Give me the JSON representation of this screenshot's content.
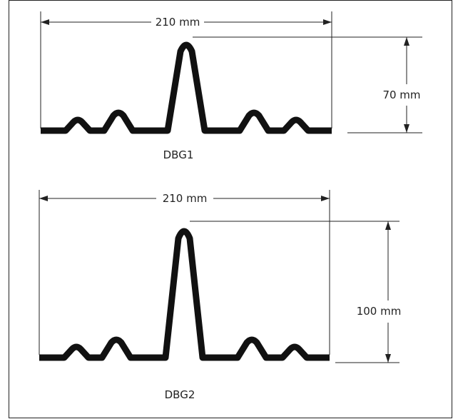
{
  "figures": [
    {
      "name": "DBG1",
      "width_label": "210 mm",
      "height_label": "70 mm"
    },
    {
      "name": "DBG2",
      "width_label": "210 mm",
      "height_label": "100 mm"
    }
  ],
  "colors": {
    "line": "#222222",
    "profile": "#111111",
    "background": "#ffffff"
  }
}
